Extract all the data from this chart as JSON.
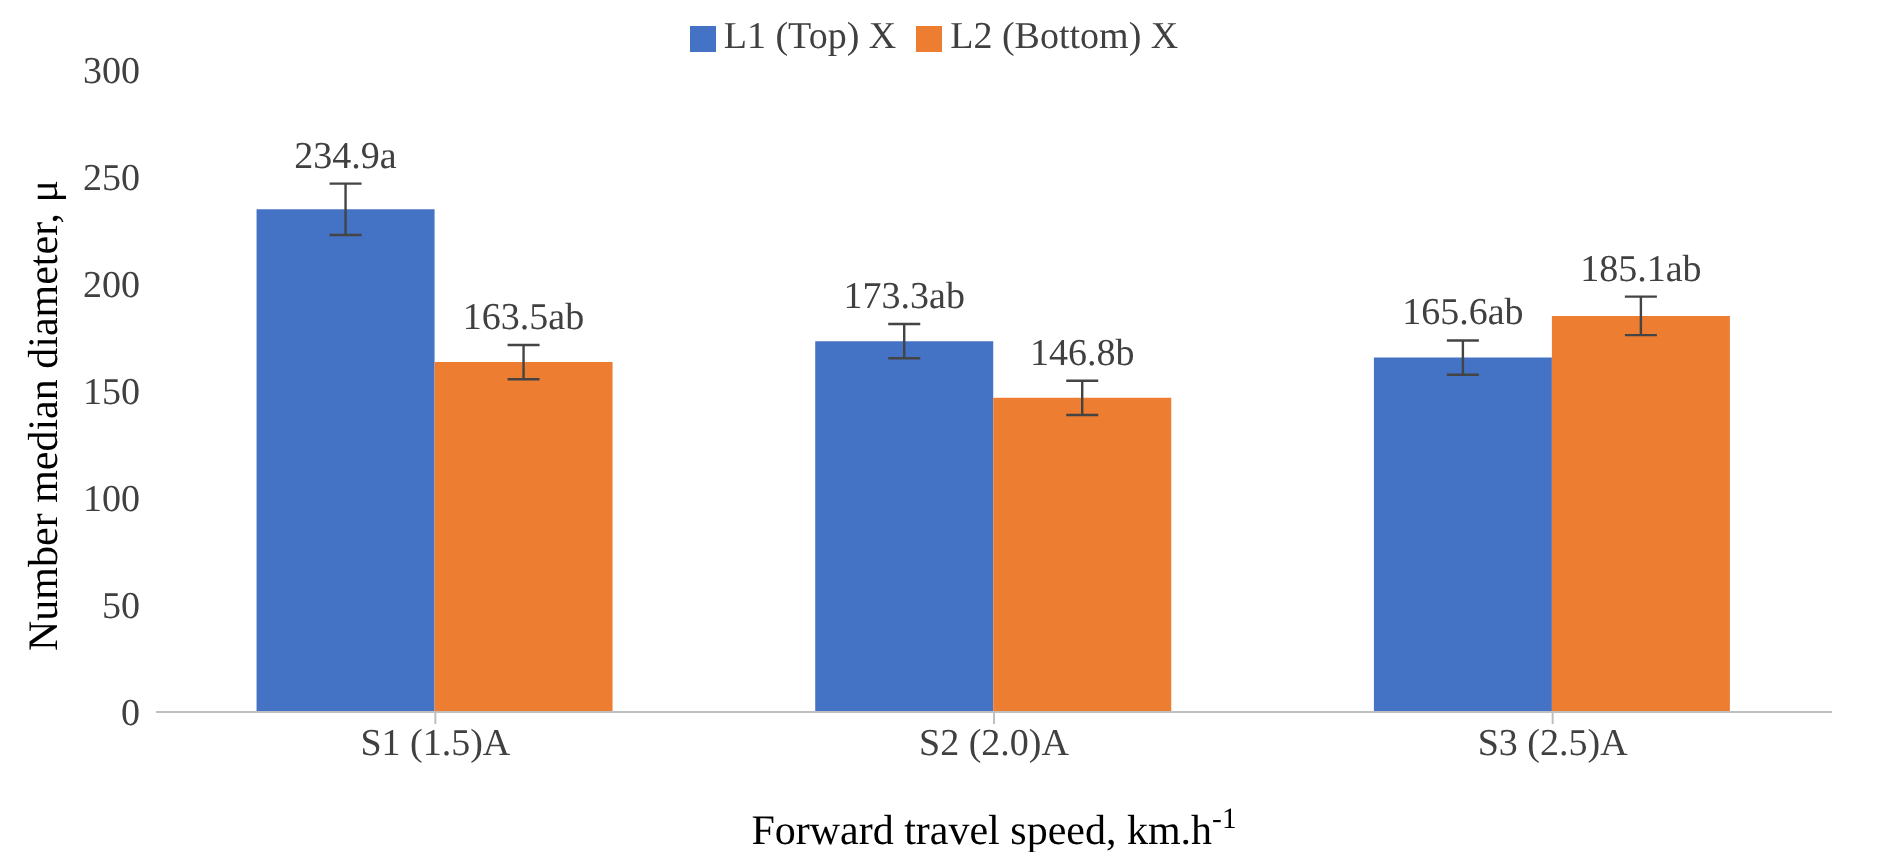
{
  "chart_data": {
    "type": "bar",
    "xlabel": "Forward travel speed, km.h$^{-1}$",
    "ylabel": "Number median diameter, μ",
    "categories": [
      "S1 (1.5)A",
      "S2 (2.0)A",
      "S3 (2.5)A"
    ],
    "series": [
      {
        "name": "L1 (Top) X",
        "color": "#4472c4",
        "values": [
          234.9,
          173.3,
          165.6
        ],
        "errors": [
          12,
          8,
          8
        ],
        "value_labels": [
          "234.9a",
          "173.3ab",
          "165.6ab"
        ]
      },
      {
        "name": "L2 (Bottom) X",
        "color": "#ed7d31",
        "values": [
          163.5,
          146.8,
          185.1
        ],
        "errors": [
          8,
          8,
          9
        ],
        "value_labels": [
          "163.5ab",
          "146.8b",
          "185.1ab"
        ]
      }
    ],
    "ylim": [
      0,
      300
    ],
    "yticks": [
      0,
      50,
      100,
      150,
      200,
      250,
      300
    ],
    "grid": false,
    "legend": "top"
  }
}
